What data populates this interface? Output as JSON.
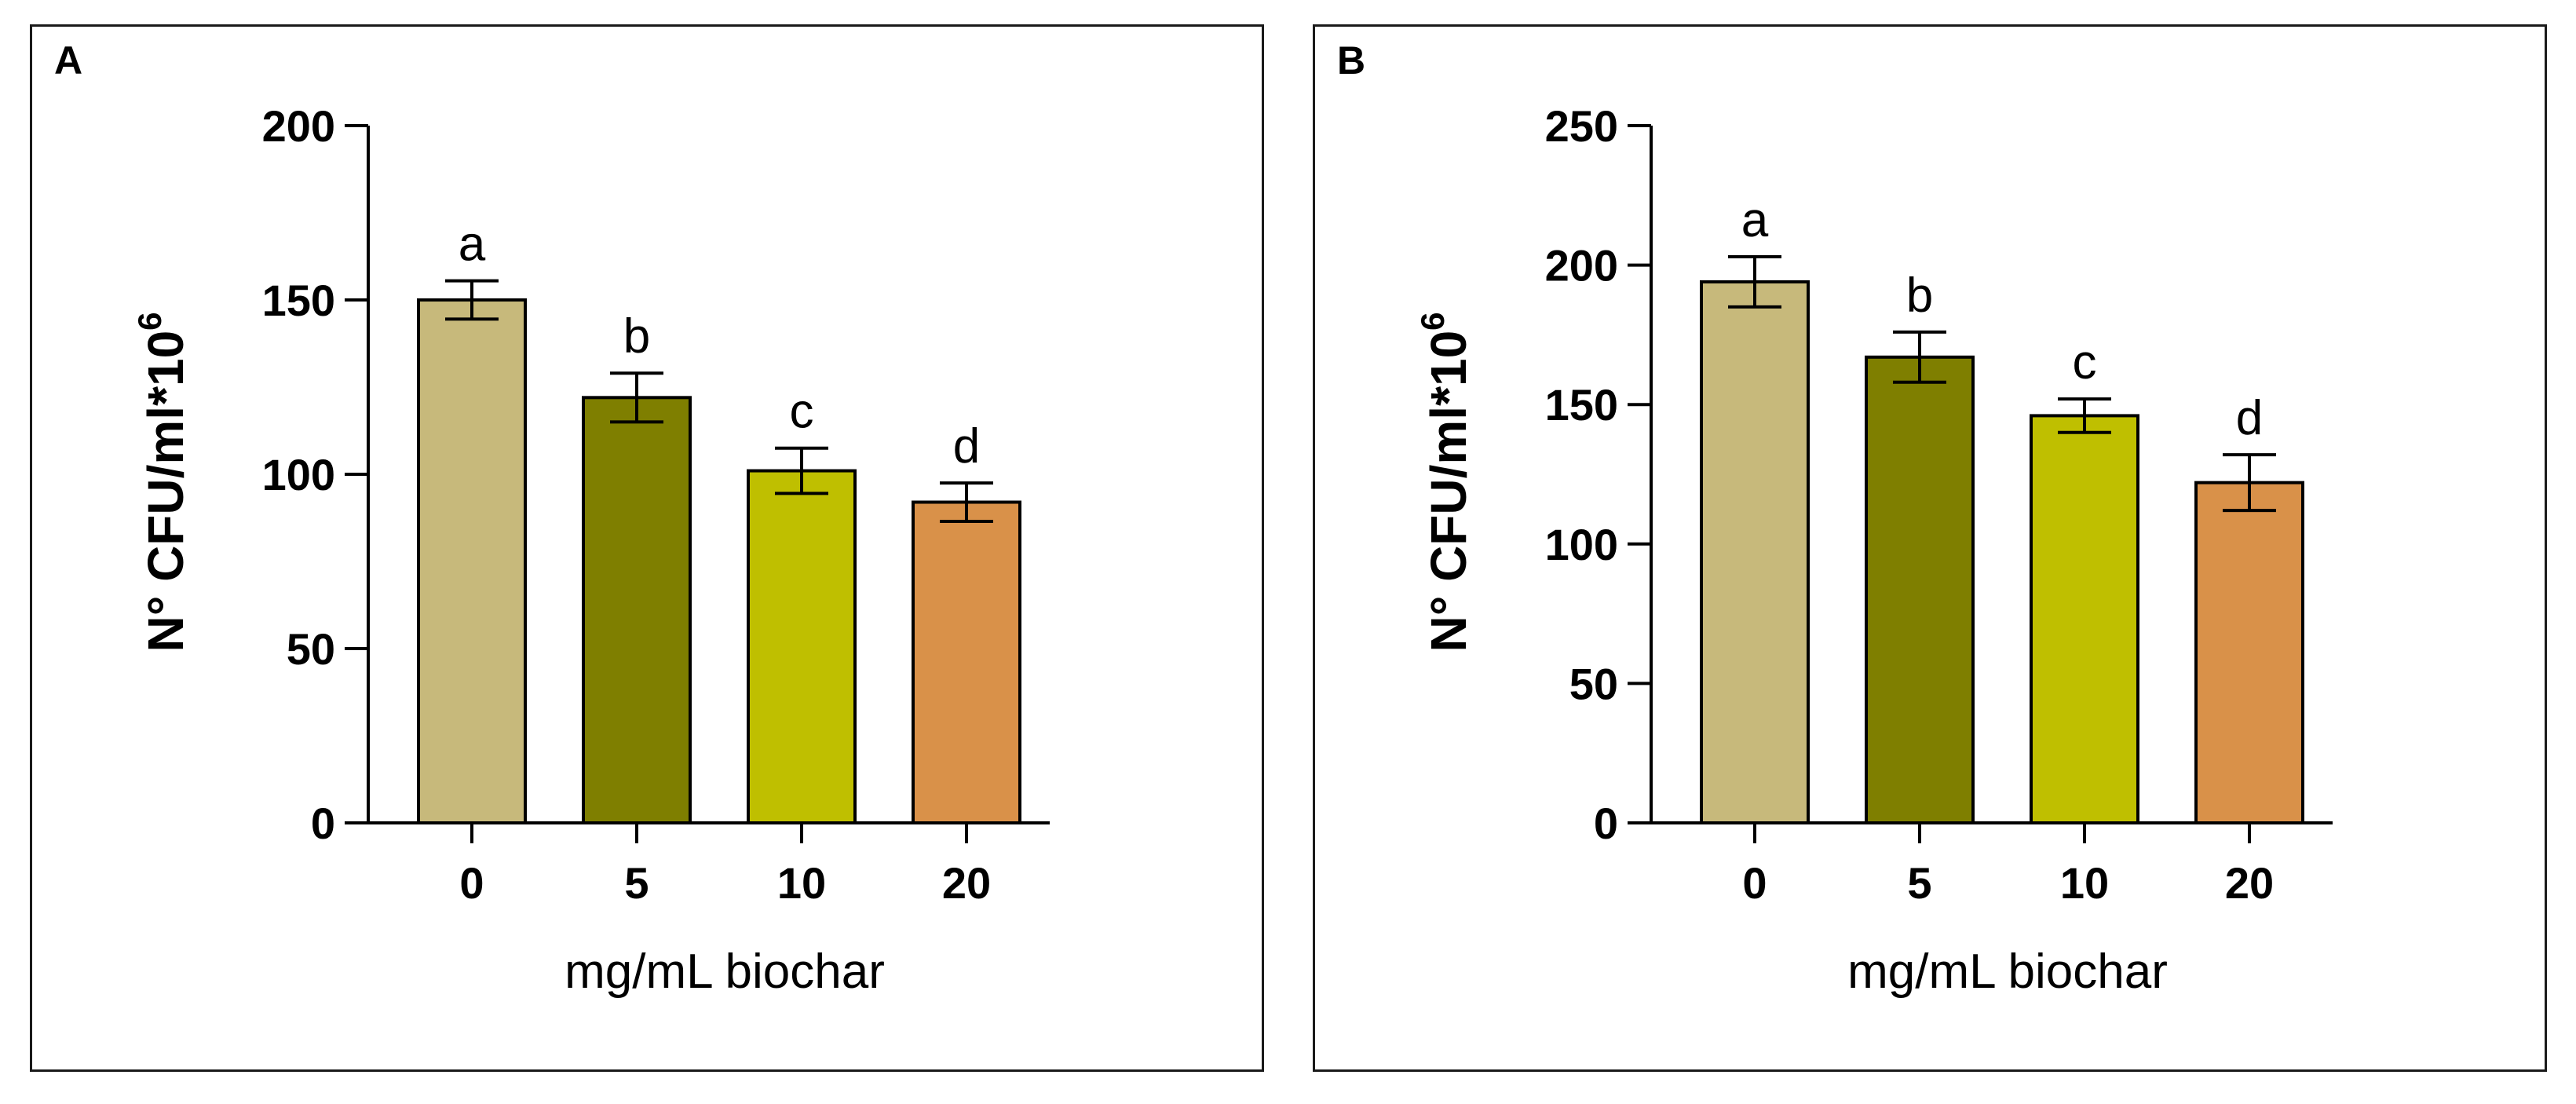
{
  "chart_data": [
    {
      "panel": "A",
      "type": "bar",
      "categories": [
        "0",
        "5",
        "10",
        "20"
      ],
      "values": [
        150,
        122,
        101,
        92
      ],
      "errors": [
        5.5,
        7,
        6.5,
        5.5
      ],
      "significance": [
        "a",
        "b",
        "c",
        "d"
      ],
      "colors": [
        "#c7b97b",
        "#7f7f00",
        "#bfbf00",
        "#d99149"
      ],
      "xlabel": "mg/mL biochar",
      "ylabel_main": "N° CFU/ml*10",
      "ylabel_sup": "6",
      "ylim": [
        0,
        200
      ],
      "yticks": [
        0,
        50,
        100,
        150,
        200
      ],
      "grid": false
    },
    {
      "panel": "B",
      "type": "bar",
      "categories": [
        "0",
        "5",
        "10",
        "20"
      ],
      "values": [
        194,
        167,
        146,
        122
      ],
      "errors": [
        9,
        9,
        6,
        10
      ],
      "significance": [
        "a",
        "b",
        "c",
        "d"
      ],
      "colors": [
        "#c7b97b",
        "#7f7f00",
        "#bfbf00",
        "#d99149"
      ],
      "xlabel": "mg/mL biochar",
      "ylabel_main": "N° CFU/ml*10",
      "ylabel_sup": "6",
      "ylim": [
        0,
        250
      ],
      "yticks": [
        0,
        50,
        100,
        150,
        200,
        250
      ],
      "grid": false
    }
  ]
}
